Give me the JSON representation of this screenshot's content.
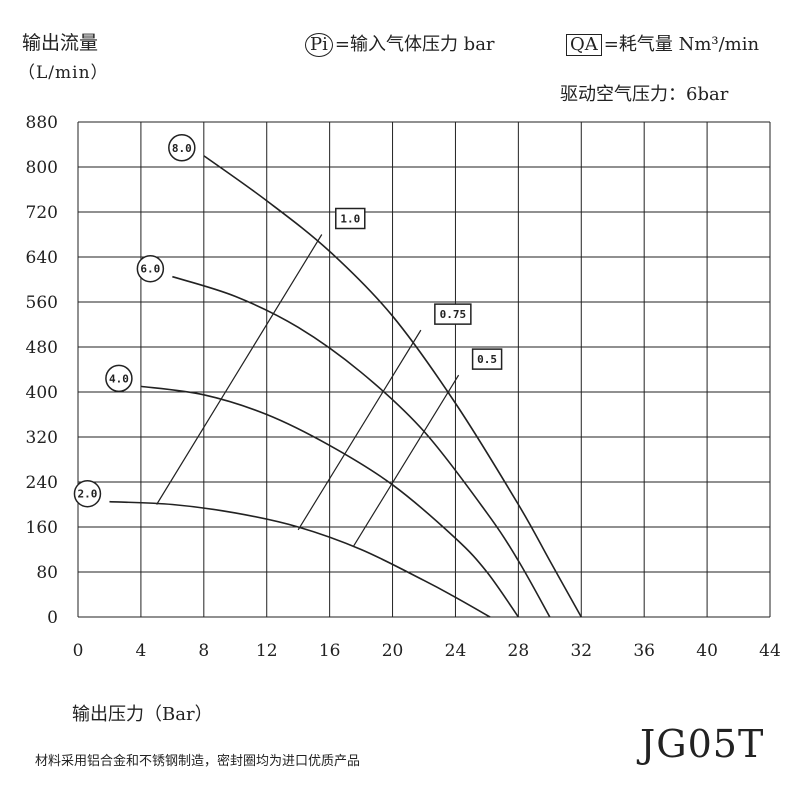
{
  "chart_data": {
    "type": "line",
    "ylabel": "输出流量",
    "ylabel_unit": "（L/min）",
    "xlabel": "输出压力（Bar）",
    "xlim": [
      0,
      44
    ],
    "ylim": [
      0,
      880
    ],
    "xticks": [
      "0",
      "4",
      "8",
      "12",
      "16",
      "20",
      "24",
      "28",
      "32",
      "36",
      "40",
      "44"
    ],
    "yticks": [
      "0",
      "80",
      "160",
      "240",
      "320",
      "400",
      "480",
      "560",
      "640",
      "720",
      "800",
      "880"
    ],
    "grid": true,
    "legend": {
      "pi_symbol": "Pi",
      "pi_text": "=输入气体压力 bar",
      "qa_symbol": "QA",
      "qa_text": "=耗气量 Nm³/min"
    },
    "series": [
      {
        "name": "8.0",
        "x": [
          8,
          12,
          16,
          20,
          24,
          28,
          30,
          32
        ],
        "y": [
          820,
          740,
          650,
          535,
          380,
          200,
          100,
          0
        ]
      },
      {
        "name": "6.0",
        "x": [
          6,
          10,
          14,
          18,
          22,
          26,
          28,
          30
        ],
        "y": [
          605,
          570,
          515,
          435,
          330,
          185,
          100,
          0
        ]
      },
      {
        "name": "4.0",
        "x": [
          4,
          8,
          12,
          16,
          20,
          24,
          26,
          28
        ],
        "y": [
          410,
          395,
          360,
          305,
          235,
          140,
          80,
          0
        ]
      },
      {
        "name": "2.0",
        "x": [
          2,
          6,
          10,
          14,
          18,
          22,
          24,
          26.2
        ],
        "y": [
          205,
          200,
          185,
          160,
          120,
          65,
          35,
          0
        ]
      }
    ],
    "consumption_lines": [
      {
        "name": "1.0",
        "x": [
          5,
          15.5
        ],
        "y": [
          200,
          680
        ]
      },
      {
        "name": "0.75",
        "x": [
          14,
          21.8
        ],
        "y": [
          155,
          510
        ]
      },
      {
        "name": "0.5",
        "x": [
          17.5,
          24.2
        ],
        "y": [
          125,
          430
        ]
      }
    ]
  },
  "drive_pressure": "驱动空气压力：6bar",
  "model": "JG05T",
  "note": "材料采用铝合金和不锈钢制造，密封圈均为进口优质产品"
}
